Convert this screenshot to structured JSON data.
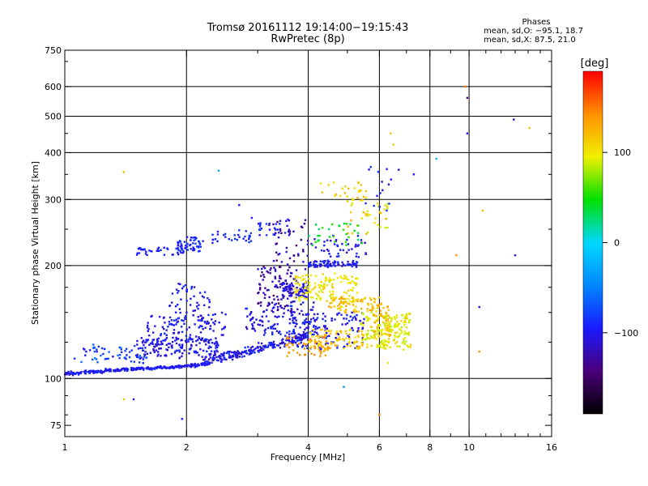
{
  "header": {
    "title_line1": "Tromsø 20161112 19:14:00−19:15:43",
    "title_line2": "RwPretec (8p)"
  },
  "phase_stats": {
    "label": "Phases",
    "line_o": "mean, sd,O: −95.1, 18.7",
    "line_x": "mean, sd,X:  87.5, 21.0"
  },
  "colorbar": {
    "title": "[deg]",
    "ticks": [
      {
        "value": 100,
        "label": "100"
      },
      {
        "value": 0,
        "label": "0"
      },
      {
        "value": -100,
        "label": "−100"
      }
    ],
    "range": [
      -190,
      190
    ]
  },
  "chart_data": {
    "type": "scatter",
    "xlabel": "Frequency [MHz]",
    "ylabel": "Stationary phase Virtual Height [km]",
    "xscale": "log",
    "yscale": "log",
    "xlim": [
      1,
      16
    ],
    "ylim": [
      70,
      750
    ],
    "xticks": [
      1,
      2,
      4,
      6,
      8,
      10,
      16
    ],
    "xtick_labels": [
      "1",
      "2",
      "4",
      "6",
      "8",
      "10",
      "16"
    ],
    "yticks": [
      75,
      100,
      200,
      300,
      400,
      500,
      600,
      750
    ],
    "ytick_labels": [
      "75",
      "100",
      "200",
      "300",
      "400",
      "500",
      "600",
      "750"
    ],
    "grid_x": [
      2,
      4,
      6,
      8,
      10
    ],
    "grid_y": [
      100,
      200,
      300,
      400,
      500,
      600
    ],
    "color_scale": [
      "#000000",
      "#4a007a",
      "#1a1aff",
      "#0088ff",
      "#00d8ff",
      "#00e000",
      "#f0f000",
      "#ff9000",
      "#ff0000"
    ],
    "clusters": [
      {
        "f": [
          1.0,
          2.25
        ],
        "h": [
          103,
          109
        ],
        "trend": "inc",
        "n": 260,
        "phase": [
          -110,
          -85
        ],
        "spread": 0.015
      },
      {
        "f": [
          1.05,
          1.6
        ],
        "h": [
          110,
          122
        ],
        "trend": "flat",
        "n": 60,
        "phase": [
          -100,
          -50
        ],
        "spread": 0.04
      },
      {
        "f": [
          1.5,
          2.4
        ],
        "h": [
          114,
          128
        ],
        "trend": "flat",
        "n": 140,
        "phase": [
          -120,
          -85
        ],
        "spread": 0.05
      },
      {
        "f": [
          2.2,
          4.0
        ],
        "h": [
          110,
          130
        ],
        "trend": "inc",
        "n": 220,
        "phase": [
          -125,
          -80
        ],
        "spread": 0.04
      },
      {
        "f": [
          1.6,
          2.5
        ],
        "h": [
          122,
          150
        ],
        "trend": "flat",
        "n": 120,
        "phase": [
          -115,
          -85
        ],
        "spread": 0.06
      },
      {
        "f": [
          1.8,
          2.3
        ],
        "h": [
          140,
          180
        ],
        "trend": "flat",
        "n": 60,
        "phase": [
          -110,
          -80
        ],
        "spread": 0.05
      },
      {
        "f": [
          1.5,
          2.0
        ],
        "h": [
          213,
          223
        ],
        "trend": "flat",
        "n": 40,
        "phase": [
          -105,
          -85
        ],
        "spread": 0.02
      },
      {
        "f": [
          1.9,
          2.2
        ],
        "h": [
          218,
          240
        ],
        "trend": "flat",
        "n": 50,
        "phase": [
          -105,
          -80
        ],
        "spread": 0.02
      },
      {
        "f": [
          2.3,
          2.9
        ],
        "h": [
          230,
          248
        ],
        "trend": "flat",
        "n": 30,
        "phase": [
          -105,
          -80
        ],
        "spread": 0.02
      },
      {
        "f": [
          3.0,
          3.6
        ],
        "h": [
          240,
          260
        ],
        "trend": "flat",
        "n": 25,
        "phase": [
          -110,
          -80
        ],
        "spread": 0.03
      },
      {
        "f": [
          3.0,
          3.7
        ],
        "h": [
          150,
          200
        ],
        "trend": "flat",
        "n": 90,
        "phase": [
          -150,
          -100
        ],
        "spread": 0.05
      },
      {
        "f": [
          3.4,
          4.0
        ],
        "h": [
          165,
          180
        ],
        "trend": "flat",
        "n": 70,
        "phase": [
          -120,
          -95
        ],
        "spread": 0.03
      },
      {
        "f": [
          2.8,
          4.2
        ],
        "h": [
          130,
          160
        ],
        "trend": "flat",
        "n": 110,
        "phase": [
          -120,
          -80
        ],
        "spread": 0.05
      },
      {
        "f": [
          3.2,
          4.2
        ],
        "h": [
          180,
          270
        ],
        "trend": "flat",
        "n": 60,
        "phase": [
          -150,
          -95
        ],
        "spread": 0.06
      },
      {
        "f": [
          3.6,
          5.5
        ],
        "h": [
          120,
          150
        ],
        "trend": "flat",
        "n": 140,
        "phase": [
          -120,
          -80
        ],
        "spread": 0.05
      },
      {
        "f": [
          4.0,
          5.3
        ],
        "h": [
          198,
          206
        ],
        "trend": "flat",
        "n": 80,
        "phase": [
          -115,
          -85
        ],
        "spread": 0.01
      },
      {
        "f": [
          4.3,
          5.6
        ],
        "h": [
          210,
          240
        ],
        "trend": "flat",
        "n": 40,
        "phase": [
          -115,
          -85
        ],
        "spread": 0.03
      },
      {
        "f": [
          3.7,
          5.3
        ],
        "h": [
          160,
          190
        ],
        "trend": "flat",
        "n": 140,
        "phase": [
          85,
          115
        ],
        "spread": 0.04
      },
      {
        "f": [
          4.0,
          5.5
        ],
        "h": [
          120,
          135
        ],
        "trend": "flat",
        "n": 90,
        "phase": [
          95,
          130
        ],
        "spread": 0.03
      },
      {
        "f": [
          4.5,
          6.0
        ],
        "h": [
          150,
          165
        ],
        "trend": "flat",
        "n": 80,
        "phase": [
          100,
          135
        ],
        "spread": 0.03
      },
      {
        "f": [
          5.4,
          7.2
        ],
        "h": [
          120,
          150
        ],
        "trend": "flat",
        "n": 200,
        "phase": [
          80,
          115
        ],
        "spread": 0.05
      },
      {
        "f": [
          5.0,
          6.3
        ],
        "h": [
          240,
          300
        ],
        "trend": "flat",
        "n": 40,
        "phase": [
          80,
          130
        ],
        "spread": 0.04
      },
      {
        "f": [
          4.0,
          5.5
        ],
        "h": [
          225,
          260
        ],
        "trend": "flat",
        "n": 30,
        "phase": [
          25,
          60
        ],
        "spread": 0.04
      },
      {
        "f": [
          4.3,
          5.6
        ],
        "h": [
          300,
          335
        ],
        "trend": "flat",
        "n": 25,
        "phase": [
          100,
          125
        ],
        "spread": 0.03
      },
      {
        "f": [
          5.5,
          6.6
        ],
        "h": [
          280,
          375
        ],
        "trend": "flat",
        "n": 15,
        "phase": [
          -110,
          -80
        ],
        "spread": 0.05
      },
      {
        "f": [
          5.8,
          6.4
        ],
        "h": [
          130,
          160
        ],
        "trend": "flat",
        "n": 40,
        "phase": [
          110,
          135
        ],
        "spread": 0.04
      },
      {
        "f": [
          3.5,
          4.5
        ],
        "h": [
          115,
          130
        ],
        "trend": "flat",
        "n": 50,
        "phase": [
          125,
          150
        ],
        "spread": 0.03
      }
    ],
    "isolated": [
      {
        "f": 6.4,
        "h": 450,
        "phase": 120
      },
      {
        "f": 6.5,
        "h": 420,
        "phase": 115
      },
      {
        "f": 6.7,
        "h": 360,
        "phase": -120
      },
      {
        "f": 8.3,
        "h": 385,
        "phase": -20
      },
      {
        "f": 9.8,
        "h": 600,
        "phase": 150
      },
      {
        "f": 9.9,
        "h": 560,
        "phase": -140
      },
      {
        "f": 9.9,
        "h": 450,
        "phase": -100
      },
      {
        "f": 12.9,
        "h": 490,
        "phase": -110
      },
      {
        "f": 14.1,
        "h": 465,
        "phase": 120
      },
      {
        "f": 10.8,
        "h": 280,
        "phase": 120
      },
      {
        "f": 9.3,
        "h": 213,
        "phase": 135
      },
      {
        "f": 13.0,
        "h": 213,
        "phase": -95
      },
      {
        "f": 10.6,
        "h": 155,
        "phase": -100
      },
      {
        "f": 10.6,
        "h": 118,
        "phase": 140
      },
      {
        "f": 1.4,
        "h": 355,
        "phase": 120
      },
      {
        "f": 2.4,
        "h": 358,
        "phase": -20
      },
      {
        "f": 1.4,
        "h": 88,
        "phase": 120
      },
      {
        "f": 1.48,
        "h": 88,
        "phase": -110
      },
      {
        "f": 1.95,
        "h": 78,
        "phase": -90
      },
      {
        "f": 4.9,
        "h": 95,
        "phase": -40
      },
      {
        "f": 6.0,
        "h": 80,
        "phase": 150
      },
      {
        "f": 7.3,
        "h": 350,
        "phase": -100
      },
      {
        "f": 6.3,
        "h": 110,
        "phase": 100
      },
      {
        "f": 2.7,
        "h": 290,
        "phase": -100
      },
      {
        "f": 2.9,
        "h": 268,
        "phase": -95
      }
    ]
  }
}
